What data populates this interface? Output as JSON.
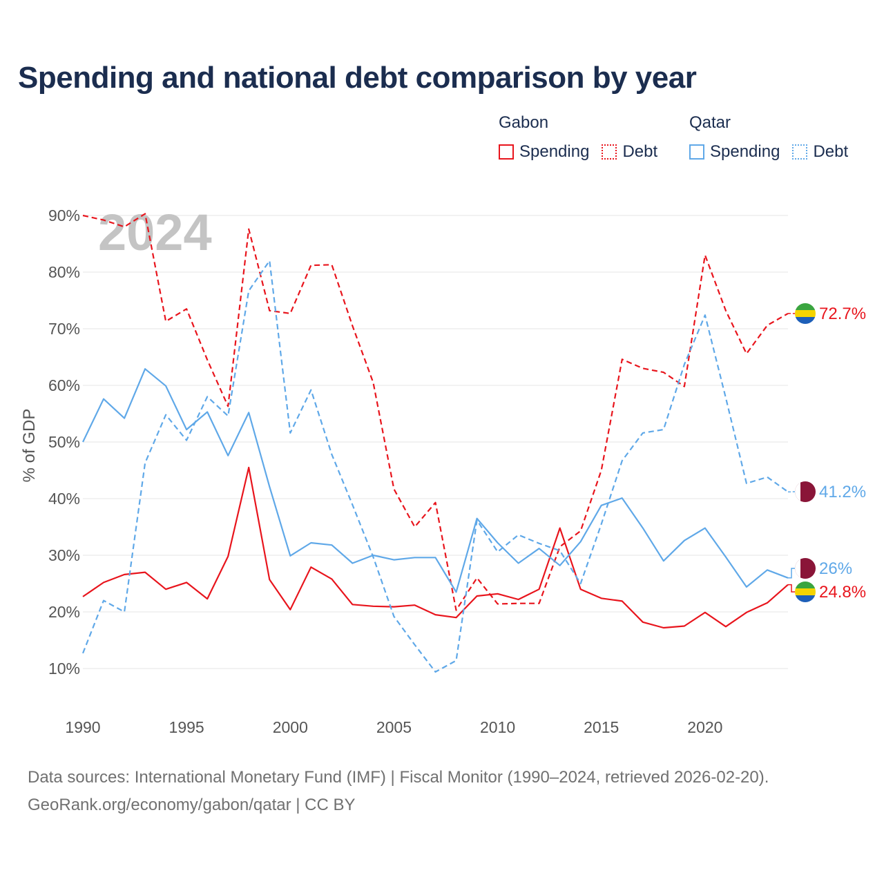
{
  "title": "Spending and national debt comparison by year",
  "legend": {
    "groups": [
      {
        "name": "Gabon",
        "items": [
          "Spending",
          "Debt"
        ]
      },
      {
        "name": "Qatar",
        "items": [
          "Spending",
          "Debt"
        ]
      }
    ]
  },
  "footer": {
    "line1": "Data sources: International Monetary Fund (IMF) | Fiscal Monitor (1990–2024, retrieved 2026-02-20).",
    "line2": "GeoRank.org/economy/gabon/qatar | CC BY"
  },
  "colors": {
    "gabon": "#e8141c",
    "qatar": "#5fa8e8",
    "title": "#1b2d4f",
    "grid": "#e6e6e6",
    "axis_text": "#555555",
    "watermark": "#c4c4c4"
  },
  "chart_data": {
    "type": "line",
    "title": "Spending and national debt comparison by year",
    "ylabel": "% of GDP",
    "xlabel": "",
    "watermark": "2024",
    "xlim": [
      1990,
      2024
    ],
    "ylim": [
      2,
      92
    ],
    "x_ticks": [
      1990,
      1995,
      2000,
      2005,
      2010,
      2015,
      2020
    ],
    "y_ticks": [
      10,
      20,
      30,
      40,
      50,
      60,
      70,
      80,
      90
    ],
    "y_tick_suffix": "%",
    "grid": true,
    "x": [
      1990,
      1991,
      1992,
      1993,
      1994,
      1995,
      1996,
      1997,
      1998,
      1999,
      2000,
      2001,
      2002,
      2003,
      2004,
      2005,
      2006,
      2007,
      2008,
      2009,
      2010,
      2011,
      2012,
      2013,
      2014,
      2015,
      2016,
      2017,
      2018,
      2019,
      2020,
      2021,
      2022,
      2023,
      2024
    ],
    "series": [
      {
        "name": "Gabon Spending",
        "country": "Gabon",
        "metric": "Spending",
        "style": "solid",
        "color": "#e8141c",
        "values": [
          22.7,
          25.2,
          26.6,
          27.0,
          24.0,
          25.2,
          22.3,
          29.8,
          45.5,
          25.7,
          20.4,
          27.9,
          25.8,
          21.3,
          21.0,
          20.9,
          21.2,
          19.5,
          19.0,
          22.8,
          23.2,
          22.2,
          24.0,
          34.8,
          24.0,
          22.4,
          21.9,
          18.2,
          17.2,
          17.5,
          19.9,
          17.4,
          19.9,
          21.6,
          24.8
        ],
        "end_label": "24.8%"
      },
      {
        "name": "Gabon Debt",
        "country": "Gabon",
        "metric": "Debt",
        "style": "dashed",
        "color": "#e8141c",
        "values": [
          90.0,
          89.2,
          88.0,
          90.3,
          71.3,
          73.5,
          64.5,
          56.3,
          87.6,
          73.2,
          72.7,
          81.2,
          81.3,
          70.5,
          60.5,
          41.7,
          35.0,
          39.3,
          20.3,
          26.0,
          21.4,
          21.5,
          21.5,
          31.5,
          34.3,
          45.0,
          64.6,
          63.0,
          62.3,
          59.8,
          83.0,
          73.2,
          65.6,
          70.6,
          72.7
        ],
        "end_label": "72.7%"
      },
      {
        "name": "Qatar Spending",
        "country": "Qatar",
        "metric": "Spending",
        "style": "solid",
        "color": "#5fa8e8",
        "values": [
          50.0,
          57.6,
          54.2,
          62.9,
          59.9,
          52.2,
          55.3,
          47.6,
          55.2,
          42.1,
          29.9,
          32.2,
          31.8,
          28.6,
          30.0,
          29.2,
          29.6,
          29.6,
          23.5,
          36.5,
          32.2,
          28.6,
          31.2,
          28.2,
          32.4,
          38.8,
          40.1,
          34.8,
          29.0,
          32.6,
          34.8,
          29.7,
          24.4,
          27.4,
          26.0
        ],
        "end_label": "26%"
      },
      {
        "name": "Qatar Debt",
        "country": "Qatar",
        "metric": "Debt",
        "style": "dashed",
        "color": "#5fa8e8",
        "values": [
          12.7,
          22.0,
          20.0,
          46.3,
          54.8,
          50.3,
          58.0,
          54.6,
          76.7,
          82.0,
          51.6,
          59.2,
          47.8,
          38.9,
          29.7,
          19.2,
          14.2,
          9.4,
          11.4,
          36.2,
          30.6,
          33.6,
          32.1,
          30.8,
          25.0,
          35.5,
          46.7,
          51.6,
          52.2,
          63.7,
          72.4,
          57.8,
          42.7,
          43.8,
          41.2
        ],
        "end_label": "41.2%"
      }
    ]
  }
}
